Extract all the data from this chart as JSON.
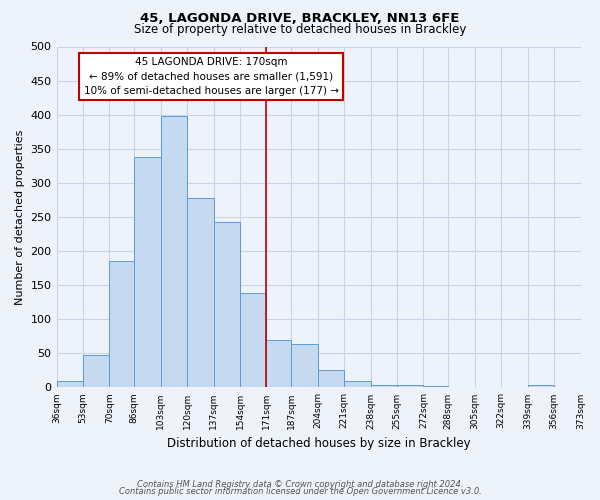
{
  "title": "45, LAGONDA DRIVE, BRACKLEY, NN13 6FE",
  "subtitle": "Size of property relative to detached houses in Brackley",
  "xlabel": "Distribution of detached houses by size in Brackley",
  "ylabel": "Number of detached properties",
  "bar_values": [
    10,
    47,
    185,
    338,
    398,
    278,
    242,
    138,
    70,
    63,
    26,
    9,
    3,
    3,
    2,
    1,
    0,
    0,
    3
  ],
  "bin_edges": [
    36,
    53,
    70,
    86,
    103,
    120,
    137,
    154,
    171,
    187,
    204,
    221,
    238,
    255,
    272,
    288,
    305,
    322,
    339,
    356
  ],
  "tick_labels": [
    "36sqm",
    "53sqm",
    "70sqm",
    "86sqm",
    "103sqm",
    "120sqm",
    "137sqm",
    "154sqm",
    "171sqm",
    "187sqm",
    "204sqm",
    "221sqm",
    "238sqm",
    "255sqm",
    "272sqm",
    "288sqm",
    "305sqm",
    "322sqm",
    "339sqm",
    "356sqm",
    "373sqm"
  ],
  "bar_color": "#c5d9f0",
  "bar_edge_color": "#5b9bd5",
  "vline_x": 171,
  "vline_color": "#c00000",
  "annotation_title": "45 LAGONDA DRIVE: 170sqm",
  "annotation_line2": "← 89% of detached houses are smaller (1,591)",
  "annotation_line3": "10% of semi-detached houses are larger (177) →",
  "ylim": [
    0,
    500
  ],
  "yticks": [
    0,
    50,
    100,
    150,
    200,
    250,
    300,
    350,
    400,
    450,
    500
  ],
  "footer_line1": "Contains HM Land Registry data © Crown copyright and database right 2024.",
  "footer_line2": "Contains public sector information licensed under the Open Government Licence v3.0.",
  "background_color": "#eef2fb",
  "plot_bg_color": "#eef2fb",
  "grid_color": "#c8d4e8",
  "title_fontsize": 9.5,
  "subtitle_fontsize": 8.5
}
